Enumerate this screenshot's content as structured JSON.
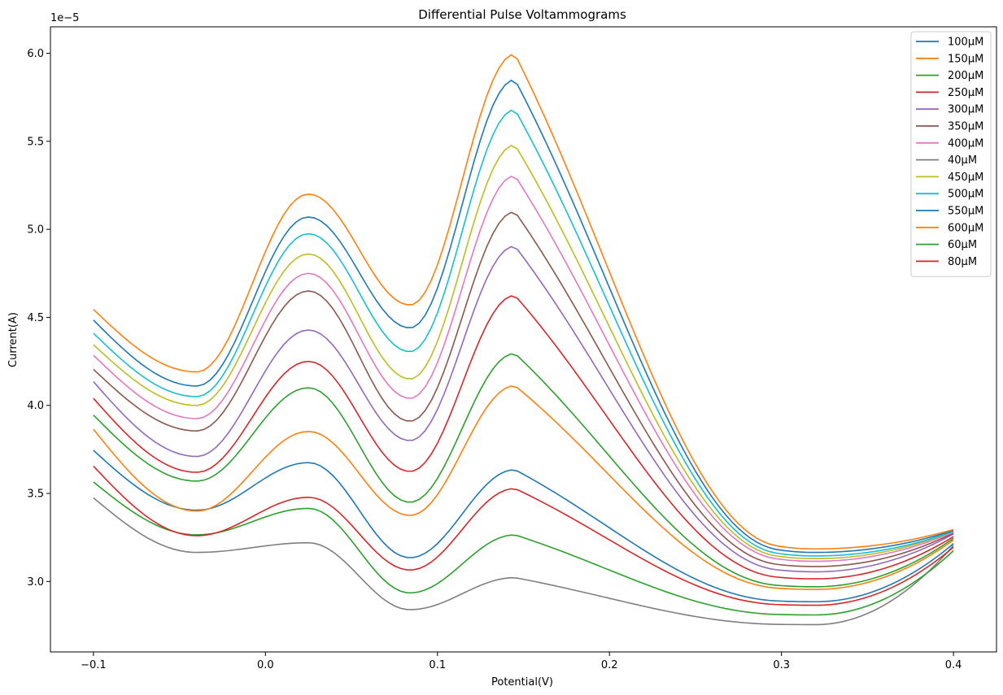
{
  "chart_data": {
    "type": "line",
    "title": "Differential Pulse Voltammograms",
    "xlabel": "Potential(V)",
    "ylabel": "Current(A)",
    "y_offset_label": "1e−5",
    "xlim": [
      -0.125,
      0.425
    ],
    "ylim": [
      2.6,
      6.15
    ],
    "x_ticks": [
      -0.1,
      0.0,
      0.1,
      0.2,
      0.3,
      0.4
    ],
    "x_tick_labels": [
      "−0.1",
      "0.0",
      "0.1",
      "0.2",
      "0.3",
      "0.4"
    ],
    "y_ticks": [
      3.0,
      3.5,
      4.0,
      4.5,
      5.0,
      5.5,
      6.0
    ],
    "y_tick_labels": [
      "3.0",
      "3.5",
      "4.0",
      "4.5",
      "5.0",
      "5.5",
      "6.0"
    ],
    "grid": false,
    "legend_position": "top-right",
    "x_range": [
      -0.1,
      0.4
    ],
    "series": [
      {
        "name": "100µM",
        "color": "#1f77b4",
        "start": 3.745,
        "valley1": 3.405,
        "peak1": 3.675,
        "valley2": 3.135,
        "peak2": 3.635,
        "plateau": 2.885,
        "end": 3.215
      },
      {
        "name": "150µM",
        "color": "#ff7f0e",
        "start": 3.865,
        "valley1": 3.4,
        "peak1": 3.852,
        "valley2": 3.375,
        "peak2": 4.112,
        "plateau": 2.955,
        "end": 3.235
      },
      {
        "name": "200µM",
        "color": "#2ca02c",
        "start": 3.945,
        "valley1": 3.57,
        "peak1": 4.1,
        "valley2": 3.45,
        "peak2": 4.295,
        "plateau": 2.97,
        "end": 3.245
      },
      {
        "name": "250µM",
        "color": "#d62728",
        "start": 4.04,
        "valley1": 3.62,
        "peak1": 4.25,
        "valley2": 3.625,
        "peak2": 4.625,
        "plateau": 3.015,
        "end": 3.255
      },
      {
        "name": "300µM",
        "color": "#9467bd",
        "start": 4.135,
        "valley1": 3.71,
        "peak1": 4.428,
        "valley2": 3.8,
        "peak2": 4.905,
        "plateau": 3.055,
        "end": 3.27
      },
      {
        "name": "350µM",
        "color": "#8c564b",
        "start": 4.205,
        "valley1": 3.855,
        "peak1": 4.65,
        "valley2": 3.91,
        "peak2": 5.1,
        "plateau": 3.085,
        "end": 3.275
      },
      {
        "name": "400µM",
        "color": "#e377c2",
        "start": 4.285,
        "valley1": 3.925,
        "peak1": 4.75,
        "valley2": 4.04,
        "peak2": 5.305,
        "plateau": 3.115,
        "end": 3.28
      },
      {
        "name": "40µM",
        "color": "#7f7f7f",
        "start": 3.475,
        "valley1": 3.165,
        "peak1": 3.22,
        "valley2": 2.84,
        "peak2": 3.022,
        "plateau": 2.755,
        "end": 3.205
      },
      {
        "name": "450µM",
        "color": "#bcbd22",
        "start": 4.345,
        "valley1": 4.0,
        "peak1": 4.86,
        "valley2": 4.15,
        "peak2": 5.48,
        "plateau": 3.13,
        "end": 3.285
      },
      {
        "name": "500µM",
        "color": "#17becf",
        "start": 4.41,
        "valley1": 4.05,
        "peak1": 4.975,
        "valley2": 4.305,
        "peak2": 5.68,
        "plateau": 3.145,
        "end": 3.285
      },
      {
        "name": "550µM",
        "color": "#1f77b4",
        "start": 4.485,
        "valley1": 4.11,
        "peak1": 5.07,
        "valley2": 4.44,
        "peak2": 5.85,
        "plateau": 3.165,
        "end": 3.29
      },
      {
        "name": "600µM",
        "color": "#ff7f0e",
        "start": 4.545,
        "valley1": 4.19,
        "peak1": 5.2,
        "valley2": 4.57,
        "peak2": 5.995,
        "plateau": 3.185,
        "end": 3.295
      },
      {
        "name": "60µM",
        "color": "#2ca02c",
        "start": 3.565,
        "valley1": 3.265,
        "peak1": 3.415,
        "valley2": 2.935,
        "peak2": 3.265,
        "plateau": 2.81,
        "end": 3.175
      },
      {
        "name": "80µM",
        "color": "#d62728",
        "start": 3.655,
        "valley1": 3.26,
        "peak1": 3.478,
        "valley2": 3.065,
        "peak2": 3.528,
        "plateau": 2.865,
        "end": 3.195
      }
    ]
  }
}
